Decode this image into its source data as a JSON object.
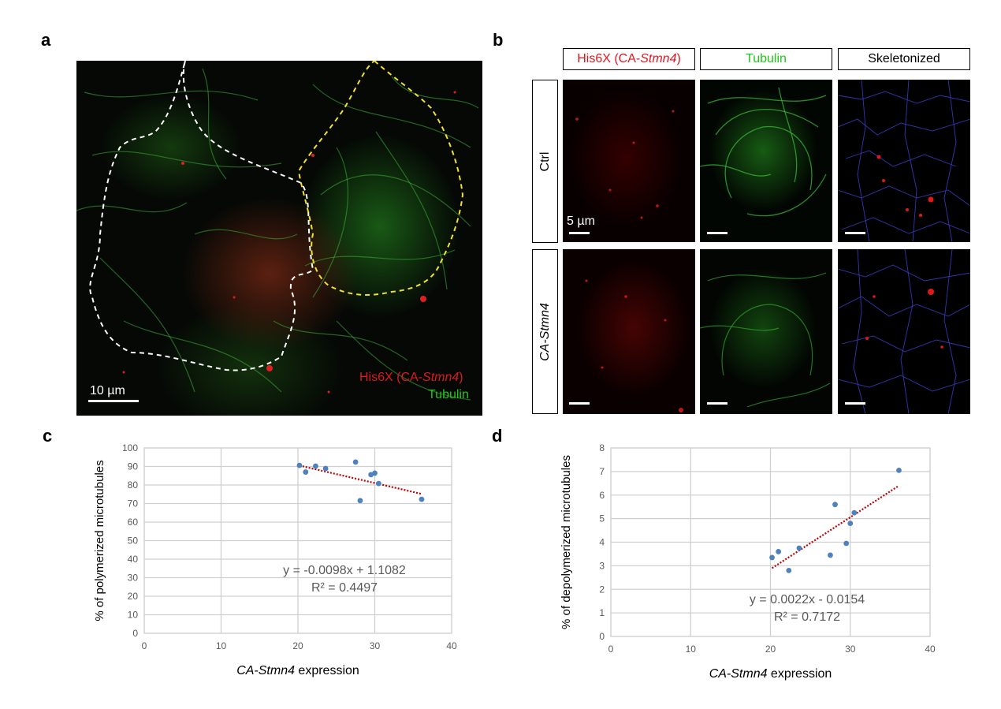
{
  "panel_a": {
    "letter": "a",
    "scale_label": "10 µm",
    "legend_his": "His6X (CA-",
    "legend_his_gene": "Stmn4",
    "legend_his_close": ")",
    "legend_tubulin": "Tubulin"
  },
  "panel_b": {
    "letter": "b",
    "col_headers": [
      {
        "prefix": "His6X (CA-",
        "gene": "Stmn4",
        "suffix": ")"
      },
      {
        "text": "Tubulin"
      },
      {
        "text": "Skeletonized"
      }
    ],
    "row_ctrl": "Ctrl",
    "row_treat": "CA-Stmn4",
    "scale_label": "5 µm"
  },
  "colors": {
    "red": "#e0181f",
    "green": "#22c81a",
    "point": "#4f81bd",
    "trend": "#c00000",
    "grid": "#d0d0d0"
  },
  "panel_c_letter": "c",
  "panel_d_letter": "d",
  "chart_data": [
    {
      "type": "scatter",
      "xlabel_gene": "CA-Stmn4",
      "xlabel_rest": " expression",
      "ylabel": "% of polymerized microtubules",
      "xlim": [
        0,
        40
      ],
      "ylim": [
        0,
        100
      ],
      "xticks": [
        0,
        10,
        20,
        30,
        40
      ],
      "yticks": [
        0,
        10,
        20,
        30,
        40,
        50,
        60,
        70,
        80,
        90,
        100
      ],
      "grid": true,
      "points": [
        {
          "x": 20.2,
          "y": 90.6
        },
        {
          "x": 21.0,
          "y": 87.0
        },
        {
          "x": 22.3,
          "y": 90.2
        },
        {
          "x": 23.6,
          "y": 88.9
        },
        {
          "x": 27.5,
          "y": 92.4
        },
        {
          "x": 28.1,
          "y": 71.6
        },
        {
          "x": 29.5,
          "y": 85.6
        },
        {
          "x": 30.0,
          "y": 86.4
        },
        {
          "x": 30.5,
          "y": 80.8
        },
        {
          "x": 36.1,
          "y": 72.3
        }
      ],
      "trendline": {
        "x": [
          20.2,
          36.1
        ],
        "y": [
          90.5,
          75.2
        ]
      },
      "equation": "y = -0.0098x + 1.1082",
      "r2": "R² = 0.4497"
    },
    {
      "type": "scatter",
      "xlabel_gene": "CA-Stmn4",
      "xlabel_rest": " expression",
      "ylabel": "% of depolymerized microtubules",
      "xlim": [
        0,
        40
      ],
      "ylim": [
        0,
        8
      ],
      "xticks": [
        0,
        10,
        20,
        30,
        40
      ],
      "yticks": [
        0,
        1,
        2,
        3,
        4,
        5,
        6,
        7,
        8
      ],
      "grid": true,
      "points": [
        {
          "x": 20.2,
          "y": 3.35
        },
        {
          "x": 21.0,
          "y": 3.6
        },
        {
          "x": 22.3,
          "y": 2.8
        },
        {
          "x": 23.6,
          "y": 3.75
        },
        {
          "x": 27.5,
          "y": 3.45
        },
        {
          "x": 28.1,
          "y": 5.6
        },
        {
          "x": 29.5,
          "y": 3.95
        },
        {
          "x": 30.0,
          "y": 4.8
        },
        {
          "x": 30.5,
          "y": 5.25
        },
        {
          "x": 36.1,
          "y": 7.05
        }
      ],
      "trendline": {
        "x": [
          20.2,
          36.1
        ],
        "y": [
          2.9,
          6.4
        ]
      },
      "equation": "y = 0.0022x - 0.0154",
      "r2": "R² = 0.7172"
    }
  ]
}
